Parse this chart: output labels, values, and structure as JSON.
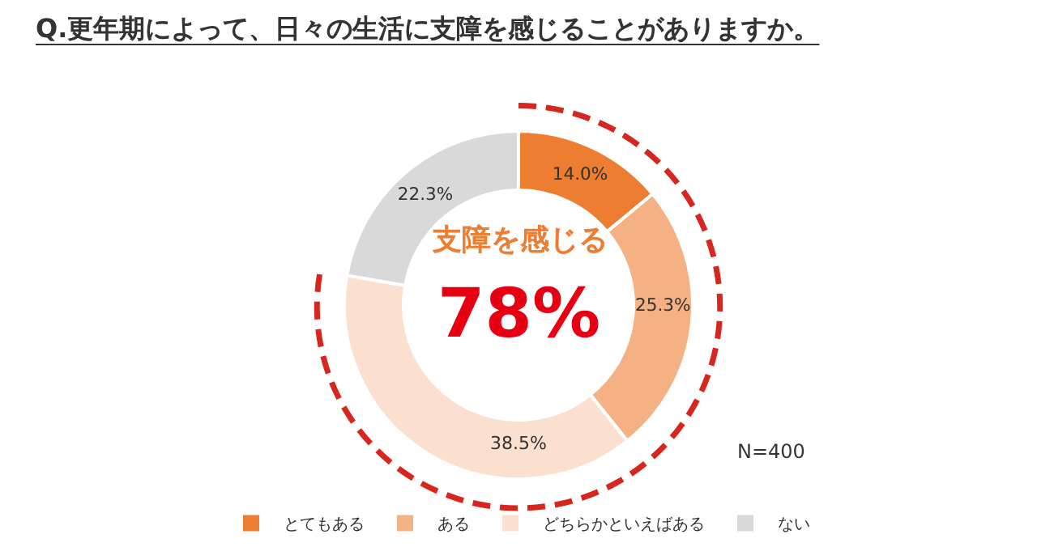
{
  "chart_data": {
    "type": "donut",
    "title": "Q.更年期によって、日々の生活に支障を感じることがありますか。",
    "categories": [
      "とてもある",
      "ある",
      "どちらかといえばある",
      "ない"
    ],
    "values": [
      14.0,
      25.3,
      38.5,
      22.3
    ],
    "value_labels": [
      "14.0%",
      "25.3%",
      "38.5%",
      "22.3%"
    ],
    "colors": [
      "#ed7d31",
      "#f4b183",
      "#fbe0d0",
      "#d9d9d9"
    ],
    "legend": "bottom",
    "annotations": [
      "支障を感じる",
      "78%",
      "N=400"
    ]
  }
}
